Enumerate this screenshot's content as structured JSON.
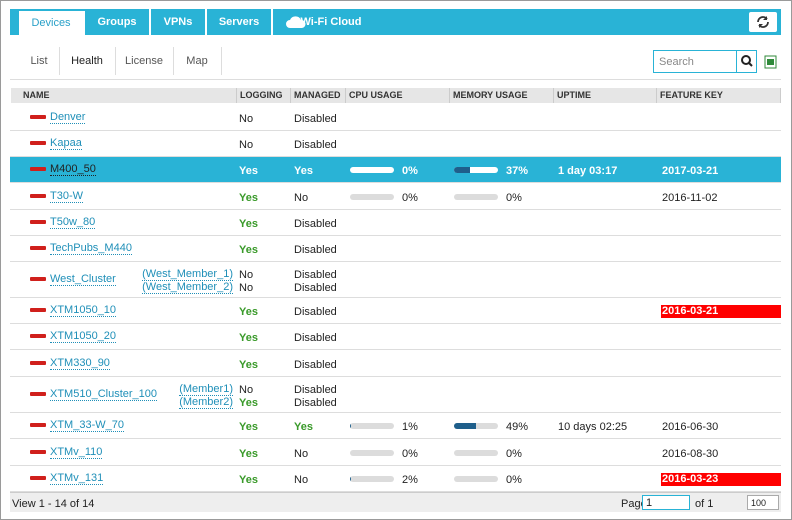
{
  "tabs": [
    "Devices",
    "Groups",
    "VPNs",
    "Servers",
    "Wi-Fi Cloud"
  ],
  "subtabs": [
    "List",
    "Health",
    "License",
    "Map"
  ],
  "search_placeholder": "Search",
  "table": {
    "columns": [
      "NAME",
      "LOGGING",
      "MANAGED",
      "CPU USAGE",
      "MEMORY USAGE",
      "UPTIME",
      "FEATURE KEY"
    ],
    "rows": [
      {
        "name": "Denver",
        "logging": "No",
        "managed": "Disabled"
      },
      {
        "name": "Kapaa",
        "logging": "No",
        "managed": "Disabled"
      },
      {
        "name": "M400_50",
        "logging": "Yes",
        "managed": "Yes",
        "cpu": {
          "value": 0,
          "label": "0%"
        },
        "memory": {
          "value": 37,
          "label": "37%"
        },
        "uptime": "1 day 03:17",
        "feature_key": "2017-03-21",
        "selected": true
      },
      {
        "name": "T30-W",
        "logging": "Yes",
        "managed": "No",
        "cpu": {
          "value": 0,
          "label": "0%"
        },
        "memory": {
          "value": 0,
          "label": "0%"
        },
        "feature_key": "2016-11-02"
      },
      {
        "name": "T50w_80",
        "logging": "Yes",
        "managed": "Disabled"
      },
      {
        "name": "TechPubs_M440",
        "logging": "Yes",
        "managed": "Disabled"
      },
      {
        "name": "West_Cluster",
        "members": [
          {
            "name": "(West_Member_1)",
            "logging": "No",
            "managed": "Disabled"
          },
          {
            "name": "(West_Member_2)",
            "logging": "No",
            "managed": "Disabled"
          }
        ]
      },
      {
        "name": "XTM1050_10",
        "logging": "Yes",
        "managed": "Disabled",
        "feature_key": "2016-03-21",
        "feature_key_color": "#ff0000"
      },
      {
        "name": "XTM1050_20",
        "logging": "Yes",
        "managed": "Disabled"
      },
      {
        "name": "XTM330_90",
        "logging": "Yes",
        "managed": "Disabled"
      },
      {
        "name": "XTM510_Cluster_100",
        "members": [
          {
            "name": "(Member1)",
            "logging": "No",
            "managed": "Disabled"
          },
          {
            "name": "(Member2)",
            "logging": "Yes",
            "managed": "Disabled"
          }
        ]
      },
      {
        "name": "XTM_33-W_70",
        "logging": "Yes",
        "managed": "Yes",
        "cpu": {
          "value": 1,
          "label": "1%"
        },
        "memory": {
          "value": 49,
          "label": "49%"
        },
        "uptime": "10 days 02:25",
        "feature_key": "2016-06-30"
      },
      {
        "name": "XTMv_110",
        "logging": "Yes",
        "managed": "No",
        "cpu": {
          "value": 0,
          "label": "0%"
        },
        "memory": {
          "value": 0,
          "label": "0%"
        },
        "feature_key": "2016-08-30"
      },
      {
        "name": "XTMv_131",
        "logging": "Yes",
        "managed": "No",
        "cpu": {
          "value": 2,
          "label": "2%"
        },
        "memory": {
          "value": 0,
          "label": "0%"
        },
        "feature_key": "2016-03-23",
        "feature_key_color": "#ff0000"
      }
    ]
  },
  "footer": {
    "view": "View 1 - 14 of 14",
    "page_label": "Page",
    "page": "1",
    "page_of": "of 1",
    "page_size": "100"
  }
}
